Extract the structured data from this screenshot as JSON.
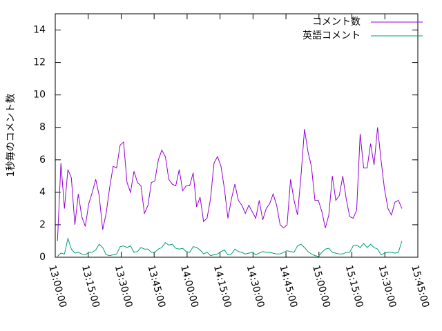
{
  "chart_data": {
    "type": "line",
    "ylabel": "1秒毎のコメント数",
    "xlim": [
      "13:00:00",
      "15:45:00"
    ],
    "xticks": [
      "13:00:00",
      "13:15:00",
      "13:30:00",
      "13:45:00",
      "14:00:00",
      "14:15:00",
      "14:30:00",
      "14:45:00",
      "15:00:00",
      "15:15:00",
      "15:30:00",
      "15:45:00"
    ],
    "ylim": [
      0,
      15
    ],
    "yticks": [
      0,
      2,
      4,
      6,
      8,
      10,
      12,
      14
    ],
    "legend": "top-right",
    "x": [
      "13:01:00",
      "13:02:35",
      "13:04:10",
      "13:05:45",
      "13:07:20",
      "13:08:55",
      "13:10:30",
      "13:12:05",
      "13:13:40",
      "13:15:15",
      "13:16:50",
      "13:18:25",
      "13:20:00",
      "13:21:35",
      "13:23:10",
      "13:24:45",
      "13:26:20",
      "13:27:55",
      "13:29:30",
      "13:31:05",
      "13:32:40",
      "13:34:15",
      "13:35:50",
      "13:37:25",
      "13:39:00",
      "13:40:35",
      "13:42:10",
      "13:43:45",
      "13:45:20",
      "13:46:55",
      "13:48:30",
      "13:50:05",
      "13:51:40",
      "13:53:15",
      "13:54:50",
      "13:56:25",
      "13:58:00",
      "13:59:35",
      "14:01:10",
      "14:02:45",
      "14:04:20",
      "14:05:55",
      "14:07:30",
      "14:09:05",
      "14:10:40",
      "14:12:15",
      "14:13:50",
      "14:15:25",
      "14:17:00",
      "14:18:35",
      "14:20:10",
      "14:21:45",
      "14:23:20",
      "14:24:55",
      "14:26:30",
      "14:28:05",
      "14:29:40",
      "14:31:15",
      "14:32:50",
      "14:34:25",
      "14:36:00",
      "14:37:35",
      "14:39:10",
      "14:40:45",
      "14:42:20",
      "14:43:55",
      "14:45:30",
      "14:47:05",
      "14:48:40",
      "14:50:15",
      "14:51:50",
      "14:53:25",
      "14:55:00",
      "14:56:35",
      "14:58:10",
      "14:59:45",
      "15:01:20",
      "15:02:55",
      "15:04:30",
      "15:06:05",
      "15:07:40",
      "15:09:15",
      "15:10:50",
      "15:12:25",
      "15:14:00",
      "15:15:35",
      "15:17:10",
      "15:18:45",
      "15:20:20",
      "15:21:55",
      "15:23:30",
      "15:25:05",
      "15:26:40",
      "15:28:15",
      "15:29:50",
      "15:31:25",
      "15:33:00",
      "15:34:35",
      "15:36:10",
      "15:37:45"
    ],
    "series": [
      {
        "name": "コメント数",
        "color": "#9400d3",
        "values": [
          1.0,
          5.8,
          3.0,
          5.4,
          4.9,
          2.0,
          3.9,
          2.5,
          1.9,
          3.3,
          4.0,
          4.8,
          3.8,
          1.7,
          2.7,
          4.3,
          5.6,
          5.5,
          6.9,
          7.1,
          4.6,
          4.0,
          5.3,
          4.6,
          4.4,
          2.7,
          3.2,
          4.6,
          4.7,
          6.0,
          6.6,
          6.2,
          4.8,
          4.5,
          4.4,
          5.4,
          4.1,
          4.4,
          4.4,
          5.2,
          3.1,
          3.7,
          2.2,
          2.4,
          3.6,
          5.8,
          6.2,
          5.6,
          4.2,
          2.4,
          3.6,
          4.5,
          3.5,
          3.2,
          2.7,
          3.2,
          2.8,
          2.4,
          3.5,
          2.3,
          3.0,
          3.3,
          3.9,
          3.2,
          2.0,
          1.8,
          2.0,
          4.8,
          3.5,
          2.6,
          5.0,
          7.9,
          6.5,
          5.6,
          3.5,
          3.5,
          2.8,
          1.8,
          2.6,
          5.0,
          3.5,
          3.8,
          5.0,
          3.6,
          2.5,
          2.4,
          2.9,
          7.6,
          5.5,
          5.5,
          7.0,
          5.7,
          8.0,
          6.0,
          4.2,
          3.0,
          2.6,
          3.4,
          3.5,
          3.0
        ]
      },
      {
        "name": "英語コメント",
        "color": "#009e73",
        "values": [
          0.05,
          0.25,
          0.2,
          1.15,
          0.5,
          0.25,
          0.3,
          0.2,
          0.15,
          0.3,
          0.3,
          0.45,
          0.8,
          0.6,
          0.15,
          0.1,
          0.15,
          0.2,
          0.65,
          0.7,
          0.6,
          0.7,
          0.3,
          0.35,
          0.6,
          0.5,
          0.5,
          0.3,
          0.3,
          0.5,
          0.6,
          0.9,
          0.75,
          0.8,
          0.55,
          0.5,
          0.55,
          0.35,
          0.3,
          0.65,
          0.6,
          0.45,
          0.2,
          0.3,
          0.1,
          0.15,
          0.2,
          0.35,
          0.45,
          0.15,
          0.2,
          0.5,
          0.35,
          0.3,
          0.2,
          0.25,
          0.3,
          0.15,
          0.25,
          0.35,
          0.3,
          0.3,
          0.25,
          0.2,
          0.2,
          0.3,
          0.4,
          0.35,
          0.3,
          0.7,
          0.8,
          0.6,
          0.35,
          0.2,
          0.1,
          0.05,
          0.3,
          0.5,
          0.55,
          0.3,
          0.25,
          0.2,
          0.2,
          0.3,
          0.3,
          0.7,
          0.75,
          0.6,
          0.85,
          0.6,
          0.8,
          0.6,
          0.5,
          0.15,
          0.25,
          0.3,
          0.3,
          0.25,
          0.3,
          1.0
        ]
      }
    ]
  }
}
